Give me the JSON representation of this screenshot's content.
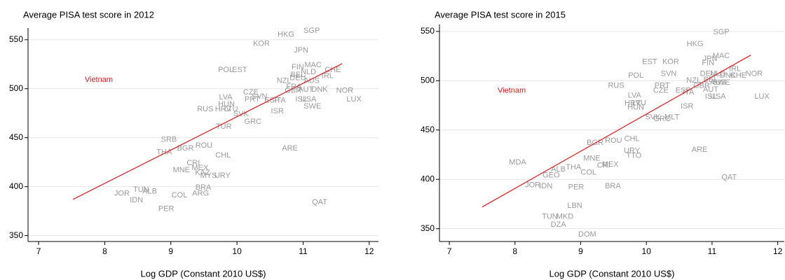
{
  "chart_data": [
    {
      "type": "scatter",
      "title": "Average PISA test score in 2012",
      "x_label": "Log GDP (Constant 2010 US$)",
      "xlim": [
        6.84,
        12.14
      ],
      "ylim": [
        344,
        562
      ],
      "xticks": [
        7,
        8,
        9,
        10,
        11,
        12
      ],
      "yticks": [
        350,
        400,
        450,
        500,
        550
      ],
      "grid": true,
      "label_color": "#9a9a9a",
      "fit_line": {
        "x": [
          7.52,
          11.59
        ],
        "y": [
          387,
          525.6
        ],
        "color": "#e31a1c"
      },
      "points": [
        {
          "label": "Vietnam",
          "x": 7.91,
          "y": 509,
          "color": "#e31a1c"
        },
        {
          "label": "SGP",
          "x": 11.13,
          "y": 559
        },
        {
          "label": "HKG",
          "x": 10.74,
          "y": 555
        },
        {
          "label": "KOR",
          "x": 10.37,
          "y": 546
        },
        {
          "label": "JPN",
          "x": 10.97,
          "y": 539
        },
        {
          "label": "FIN",
          "x": 10.92,
          "y": 522
        },
        {
          "label": "MAC",
          "x": 11.15,
          "y": 524
        },
        {
          "label": "NLD",
          "x": 11.08,
          "y": 517
        },
        {
          "label": "BEL",
          "x": 10.92,
          "y": 514
        },
        {
          "label": "DEU",
          "x": 10.92,
          "y": 511
        },
        {
          "label": "IRL",
          "x": 11.37,
          "y": 513
        },
        {
          "label": "CHE",
          "x": 11.45,
          "y": 519
        },
        {
          "label": "AUS",
          "x": 11.13,
          "y": 508
        },
        {
          "label": "NZL",
          "x": 10.71,
          "y": 508
        },
        {
          "label": "POL",
          "x": 9.83,
          "y": 519
        },
        {
          "label": "EST",
          "x": 10.04,
          "y": 519
        },
        {
          "label": "CZE",
          "x": 10.21,
          "y": 496
        },
        {
          "label": "SVN",
          "x": 10.34,
          "y": 492
        },
        {
          "label": "FRA",
          "x": 10.86,
          "y": 502
        },
        {
          "label": "GBR",
          "x": 10.85,
          "y": 498
        },
        {
          "label": "AUT",
          "x": 11.04,
          "y": 499
        },
        {
          "label": "DNK",
          "x": 11.25,
          "y": 499
        },
        {
          "label": "NOR",
          "x": 11.63,
          "y": 498
        },
        {
          "label": "LUX",
          "x": 11.77,
          "y": 489
        },
        {
          "label": "PRT",
          "x": 10.23,
          "y": 489
        },
        {
          "label": "ESP",
          "x": 10.53,
          "y": 488
        },
        {
          "label": "ITA",
          "x": 10.65,
          "y": 488
        },
        {
          "label": "ISL",
          "x": 10.97,
          "y": 489
        },
        {
          "label": "USA",
          "x": 11.08,
          "y": 489
        },
        {
          "label": "SWE",
          "x": 11.14,
          "y": 482
        },
        {
          "label": "LVA",
          "x": 9.83,
          "y": 491
        },
        {
          "label": "HUN",
          "x": 9.84,
          "y": 484
        },
        {
          "label": "RUS",
          "x": 9.52,
          "y": 479
        },
        {
          "label": "HRV",
          "x": 9.79,
          "y": 479
        },
        {
          "label": "LTU",
          "x": 9.91,
          "y": 479
        },
        {
          "label": "SVK",
          "x": 10.06,
          "y": 474
        },
        {
          "label": "ISR",
          "x": 10.61,
          "y": 477
        },
        {
          "label": "GRC",
          "x": 10.24,
          "y": 466
        },
        {
          "label": "TUR",
          "x": 9.8,
          "y": 461
        },
        {
          "label": "SRB",
          "x": 8.97,
          "y": 448
        },
        {
          "label": "THA",
          "x": 8.9,
          "y": 435
        },
        {
          "label": "BGR",
          "x": 9.22,
          "y": 439
        },
        {
          "label": "ROU",
          "x": 9.5,
          "y": 442
        },
        {
          "label": "CHL",
          "x": 9.79,
          "y": 432
        },
        {
          "label": "ARE",
          "x": 10.8,
          "y": 439
        },
        {
          "label": "CRI",
          "x": 9.34,
          "y": 424
        },
        {
          "label": "MNE",
          "x": 9.16,
          "y": 417
        },
        {
          "label": "MEX",
          "x": 9.44,
          "y": 419
        },
        {
          "label": "KAZ",
          "x": 9.48,
          "y": 414
        },
        {
          "label": "MYS",
          "x": 9.57,
          "y": 411
        },
        {
          "label": "URY",
          "x": 9.78,
          "y": 411
        },
        {
          "label": "BRA",
          "x": 9.49,
          "y": 399
        },
        {
          "label": "ARG",
          "x": 9.45,
          "y": 393
        },
        {
          "label": "JOR",
          "x": 8.26,
          "y": 393
        },
        {
          "label": "TUN",
          "x": 8.55,
          "y": 397
        },
        {
          "label": "ALB",
          "x": 8.68,
          "y": 395
        },
        {
          "label": "IDN",
          "x": 8.48,
          "y": 386
        },
        {
          "label": "COL",
          "x": 9.13,
          "y": 391
        },
        {
          "label": "PER",
          "x": 8.93,
          "y": 377
        },
        {
          "label": "QAT",
          "x": 11.25,
          "y": 384
        }
      ]
    },
    {
      "type": "scatter",
      "title": "Average PISA test score in 2015",
      "x_label": "Log GDP (Constant 2010 US$)",
      "xlim": [
        6.85,
        12.1
      ],
      "ylim": [
        337,
        557
      ],
      "xticks": [
        7,
        8,
        9,
        10,
        11,
        12
      ],
      "yticks": [
        350,
        400,
        450,
        500,
        550
      ],
      "grid": true,
      "label_color": "#9a9a9a",
      "fit_line": {
        "x": [
          7.5,
          11.59
        ],
        "y": [
          372,
          526
        ],
        "color": "#e31a1c"
      },
      "points": [
        {
          "label": "Vietnam",
          "x": 7.95,
          "y": 490,
          "color": "#e31a1c"
        },
        {
          "label": "SGP",
          "x": 11.14,
          "y": 549
        },
        {
          "label": "HKG",
          "x": 10.74,
          "y": 537
        },
        {
          "label": "JPN",
          "x": 10.97,
          "y": 522
        },
        {
          "label": "MAC",
          "x": 11.14,
          "y": 525
        },
        {
          "label": "FIN",
          "x": 10.94,
          "y": 518
        },
        {
          "label": "IRL",
          "x": 11.35,
          "y": 512
        },
        {
          "label": "EST",
          "x": 10.05,
          "y": 519
        },
        {
          "label": "KOR",
          "x": 10.37,
          "y": 519
        },
        {
          "label": "SVN",
          "x": 10.34,
          "y": 507
        },
        {
          "label": "POL",
          "x": 9.84,
          "y": 505
        },
        {
          "label": "NZL",
          "x": 10.72,
          "y": 500
        },
        {
          "label": "DEU",
          "x": 10.94,
          "y": 507
        },
        {
          "label": "NLD",
          "x": 11.09,
          "y": 507
        },
        {
          "label": "DNK",
          "x": 11.24,
          "y": 505
        },
        {
          "label": "CHE",
          "x": 11.4,
          "y": 505
        },
        {
          "label": "NOR",
          "x": 11.64,
          "y": 507
        },
        {
          "label": "BEL",
          "x": 10.98,
          "y": 501
        },
        {
          "label": "GBR",
          "x": 10.84,
          "y": 495
        },
        {
          "label": "AUS",
          "x": 11.09,
          "y": 498
        },
        {
          "label": "SWE",
          "x": 11.14,
          "y": 498
        },
        {
          "label": "AUT",
          "x": 10.98,
          "y": 491
        },
        {
          "label": "ISL",
          "x": 10.98,
          "y": 484
        },
        {
          "label": "USA",
          "x": 11.09,
          "y": 484
        },
        {
          "label": "LUX",
          "x": 11.76,
          "y": 484
        },
        {
          "label": "RUS",
          "x": 9.54,
          "y": 495
        },
        {
          "label": "PRT",
          "x": 10.24,
          "y": 495
        },
        {
          "label": "CZE",
          "x": 10.22,
          "y": 490
        },
        {
          "label": "ESP",
          "x": 10.56,
          "y": 490
        },
        {
          "label": "ITA",
          "x": 10.64,
          "y": 488
        },
        {
          "label": "LVA",
          "x": 9.82,
          "y": 485
        },
        {
          "label": "HRV",
          "x": 9.79,
          "y": 477
        },
        {
          "label": "LTU",
          "x": 9.89,
          "y": 477
        },
        {
          "label": "HUN",
          "x": 9.84,
          "y": 473
        },
        {
          "label": "ISR",
          "x": 10.62,
          "y": 474
        },
        {
          "label": "SVK",
          "x": 10.1,
          "y": 463
        },
        {
          "label": "GRC",
          "x": 10.24,
          "y": 461
        },
        {
          "label": "MLT",
          "x": 10.39,
          "y": 463
        },
        {
          "label": "CHL",
          "x": 9.78,
          "y": 441
        },
        {
          "label": "BGR",
          "x": 9.22,
          "y": 437
        },
        {
          "label": "ROU",
          "x": 9.5,
          "y": 439
        },
        {
          "label": "ARE",
          "x": 10.81,
          "y": 430
        },
        {
          "label": "URY",
          "x": 9.78,
          "y": 429
        },
        {
          "label": "TTO",
          "x": 9.81,
          "y": 424
        },
        {
          "label": "MNE",
          "x": 9.17,
          "y": 421
        },
        {
          "label": "MEX",
          "x": 9.45,
          "y": 415
        },
        {
          "label": "CRI",
          "x": 9.35,
          "y": 414
        },
        {
          "label": "MDA",
          "x": 8.04,
          "y": 417
        },
        {
          "label": "THA",
          "x": 8.89,
          "y": 412
        },
        {
          "label": "ALB",
          "x": 8.66,
          "y": 410
        },
        {
          "label": "COL",
          "x": 9.12,
          "y": 407
        },
        {
          "label": "GEO",
          "x": 8.55,
          "y": 404
        },
        {
          "label": "JOR",
          "x": 8.27,
          "y": 394
        },
        {
          "label": "IDN",
          "x": 8.47,
          "y": 393
        },
        {
          "label": "PER",
          "x": 8.93,
          "y": 392
        },
        {
          "label": "BRA",
          "x": 9.49,
          "y": 393
        },
        {
          "label": "QAT",
          "x": 11.26,
          "y": 402
        },
        {
          "label": "LBN",
          "x": 8.91,
          "y": 373
        },
        {
          "label": "TUN",
          "x": 8.53,
          "y": 362
        },
        {
          "label": "MKD",
          "x": 8.76,
          "y": 362
        },
        {
          "label": "DZA",
          "x": 8.66,
          "y": 354
        },
        {
          "label": "DOM",
          "x": 9.1,
          "y": 344
        }
      ]
    }
  ]
}
